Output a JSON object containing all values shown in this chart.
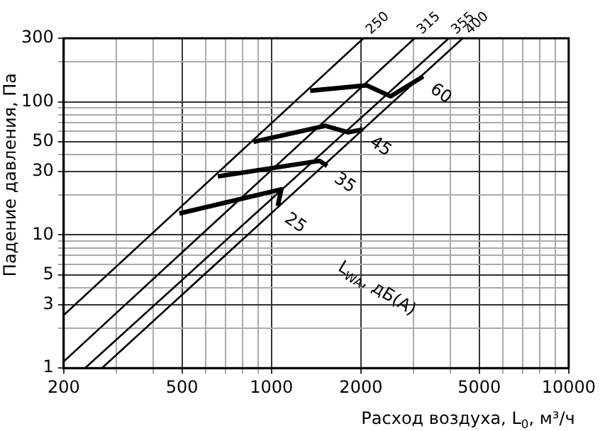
{
  "chart_data": {
    "type": "line",
    "xlabel": "Расход воздуха, L$_{0}$, м³/ч",
    "ylabel": "Падение давления, Па",
    "log": "xy",
    "grid": true,
    "legend": false,
    "marker": "none",
    "line_style": "solid",
    "xlim": [
      200,
      10000
    ],
    "ylim": [
      1,
      300
    ],
    "xticks": [
      200,
      {
        "value": 300,
        "label": null
      },
      {
        "value": 400,
        "label": null
      },
      500,
      {
        "value": 600,
        "label": null
      },
      {
        "value": 700,
        "label": null
      },
      {
        "value": 800,
        "label": null
      },
      {
        "value": 900,
        "label": null
      },
      1000,
      2000,
      {
        "value": 3000,
        "label": null
      },
      {
        "value": 4000,
        "label": null
      },
      5000,
      {
        "value": 6000,
        "label": null
      },
      {
        "value": 7000,
        "label": null
      },
      {
        "value": 8000,
        "label": null
      },
      {
        "value": 9000,
        "label": null
      },
      10000
    ],
    "yticks": [
      1,
      {
        "value": 2,
        "label": null
      },
      3,
      {
        "value": 4,
        "label": null
      },
      5,
      {
        "value": 6,
        "label": null
      },
      {
        "value": 7,
        "label": null
      },
      {
        "value": 8,
        "label": null
      },
      {
        "value": 9,
        "label": null
      },
      10,
      {
        "value": 20,
        "label": null
      },
      30,
      {
        "value": 40,
        "label": null
      },
      50,
      {
        "value": 60,
        "label": null
      },
      {
        "value": 70,
        "label": null
      },
      {
        "value": 80,
        "label": null
      },
      {
        "value": 90,
        "label": null
      },
      100,
      {
        "value": 200,
        "label": null
      },
      300
    ],
    "annotations": [
      "L$_{WA}$, дБ(А)"
    ],
    "series": [
      {
        "name": "250",
        "color": "#000000",
        "x": [
          200,
          2040
        ],
        "values": [
          2.5,
          300
        ]
      },
      {
        "name": "315",
        "color": "#000000",
        "x": [
          200,
          3030
        ],
        "values": [
          1.12,
          300
        ]
      },
      {
        "name": "355",
        "color": "#000000",
        "x": [
          236,
          3950
        ],
        "values": [
          1,
          300
        ]
      },
      {
        "name": "400",
        "color": "#000000",
        "x": [
          269,
          4400
        ],
        "values": [
          1,
          300
        ]
      },
      {
        "name": "25",
        "color": "#000000",
        "x": [
          490,
          1080,
          1050
        ],
        "values": [
          14.5,
          22,
          16.5
        ]
      },
      {
        "name": "35",
        "color": "#000000",
        "x": [
          660,
          1450,
          1540
        ],
        "values": [
          27.5,
          36,
          33
        ]
      },
      {
        "name": "45",
        "color": "#000000",
        "x": [
          870,
          1520,
          1810,
          2030
        ],
        "values": [
          50,
          66,
          59,
          62
        ]
      },
      {
        "name": "60",
        "color": "#000000",
        "x": [
          1350,
          2090,
          2520,
          3240
        ],
        "values": [
          121,
          133,
          110,
          155
        ]
      }
    ]
  }
}
